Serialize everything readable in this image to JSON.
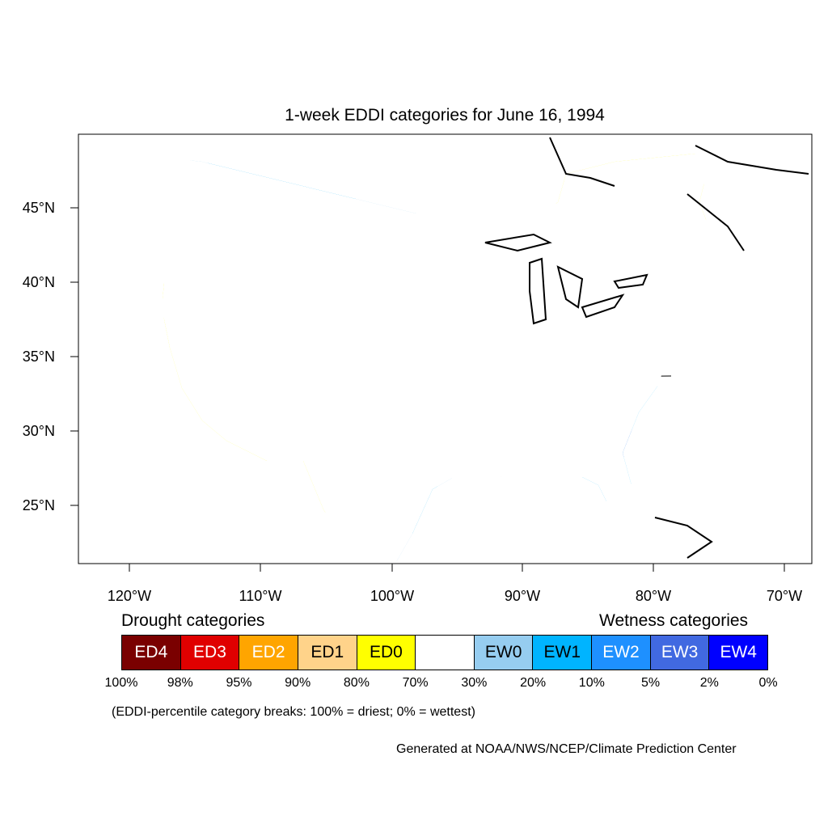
{
  "title": "1-week EDDI categories for June 16, 1994",
  "lat_labels": [
    "45°N",
    "40°N",
    "35°N",
    "30°N",
    "25°N"
  ],
  "lon_labels": [
    "120°W",
    "110°W",
    "100°W",
    "90°W",
    "80°W",
    "70°W"
  ],
  "legend": {
    "drought_heading": "Drought categories",
    "wetness_heading": "Wetness categories",
    "categories": [
      {
        "label": "ED4",
        "color": "#7a0000",
        "text_color": "#ffffff"
      },
      {
        "label": "ED3",
        "color": "#e00000",
        "text_color": "#ffffff"
      },
      {
        "label": "ED2",
        "color": "#ffa500",
        "text_color": "#ffffff"
      },
      {
        "label": "ED1",
        "color": "#ffd38a",
        "text_color": "#000000"
      },
      {
        "label": "ED0",
        "color": "#ffff00",
        "text_color": "#000000"
      },
      {
        "label": "",
        "color": "#ffffff",
        "text_color": "#000000"
      },
      {
        "label": "EW0",
        "color": "#96cdf0",
        "text_color": "#000000"
      },
      {
        "label": "EW1",
        "color": "#00b4ff",
        "text_color": "#000000"
      },
      {
        "label": "EW2",
        "color": "#1e90ff",
        "text_color": "#ffffff"
      },
      {
        "label": "EW3",
        "color": "#4169e1",
        "text_color": "#ffffff"
      },
      {
        "label": "EW4",
        "color": "#0000ff",
        "text_color": "#ffffff"
      }
    ],
    "breaks": [
      "100%",
      "98%",
      "95%",
      "90%",
      "80%",
      "70%",
      "30%",
      "20%",
      "10%",
      "5%",
      "2%",
      "0%"
    ]
  },
  "note": "(EDDI-percentile category breaks: 100% = driest; 0% = wettest)",
  "credit": "Generated at NOAA/NWS/NCEP/Climate Prediction Center"
}
